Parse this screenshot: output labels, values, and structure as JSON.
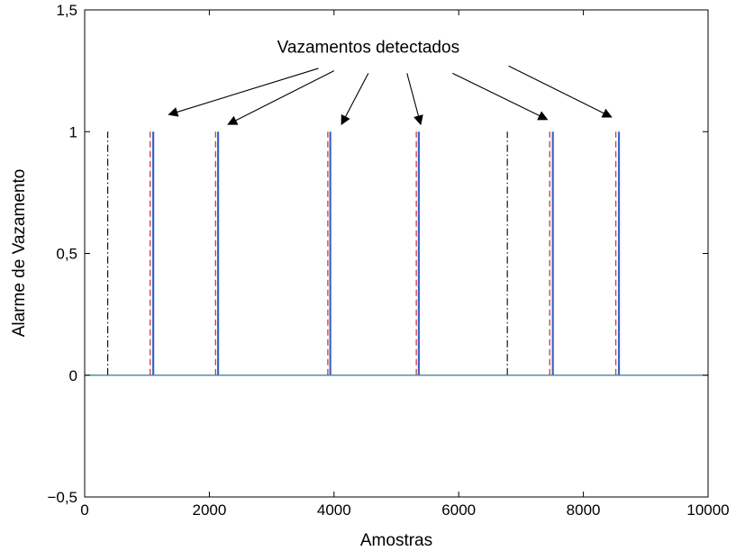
{
  "chart_data": {
    "type": "line",
    "title": "",
    "xlabel": "Amostras",
    "ylabel": "Alarme de Vazamento",
    "xlim": [
      0,
      10000
    ],
    "ylim": [
      -0.5,
      1.5
    ],
    "grid": false,
    "x_ticks": [
      0,
      2000,
      4000,
      6000,
      8000,
      10000
    ],
    "x_tick_labels": [
      "0",
      "2000",
      "4000",
      "6000",
      "8000",
      "10000"
    ],
    "y_ticks": [
      -0.5,
      0,
      0.5,
      1,
      1.5
    ],
    "y_tick_labels": [
      "−0,5",
      "0",
      "0,5",
      "1",
      "1,5"
    ],
    "baseline": 0,
    "pulse_height": 1,
    "series": [
      {
        "style": "solid",
        "color": "#3c64c8",
        "x": [
          1100,
          2140,
          3940,
          5360,
          7510,
          8570
        ]
      },
      {
        "style": "dashed",
        "color": "#d23c3c",
        "x": [
          1050,
          2100,
          3900,
          5320,
          7460,
          8520
        ]
      },
      {
        "style": "dashdot",
        "color": "#000000",
        "x": [
          370,
          6780
        ]
      }
    ],
    "annotations": [
      {
        "text": "Vazamentos detectados",
        "position": [
          4550,
          1.35
        ],
        "arrows": [
          {
            "from": [
              3750,
              1.26
            ],
            "to": [
              1350,
              1.07
            ]
          },
          {
            "from": [
              4000,
              1.25
            ],
            "to": [
              2300,
              1.03
            ]
          },
          {
            "from": [
              4550,
              1.24
            ],
            "to": [
              4120,
              1.03
            ]
          },
          {
            "from": [
              5170,
              1.24
            ],
            "to": [
              5390,
              1.03
            ]
          },
          {
            "from": [
              5900,
              1.24
            ],
            "to": [
              7420,
              1.05
            ]
          },
          {
            "from": [
              6800,
              1.27
            ],
            "to": [
              8450,
              1.06
            ]
          }
        ]
      }
    ]
  }
}
